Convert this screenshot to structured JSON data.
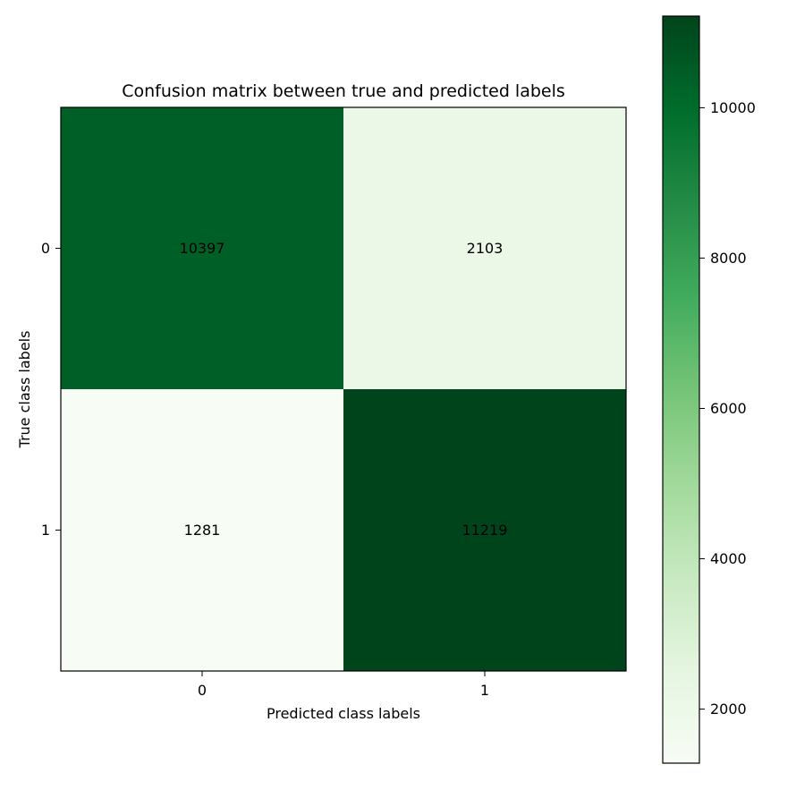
{
  "chart_data": {
    "type": "heatmap",
    "title": "Confusion matrix between true and predicted labels",
    "xlabel": "Predicted class labels",
    "ylabel": "True class labels",
    "x_categories": [
      "0",
      "1"
    ],
    "y_categories": [
      "0",
      "1"
    ],
    "values": [
      [
        10397,
        2103
      ],
      [
        1281,
        11219
      ]
    ],
    "colormap": "Greens",
    "colorbar": {
      "range": [
        1281,
        11219
      ],
      "ticks": [
        2000,
        4000,
        6000,
        8000,
        10000
      ]
    },
    "grid": false
  }
}
